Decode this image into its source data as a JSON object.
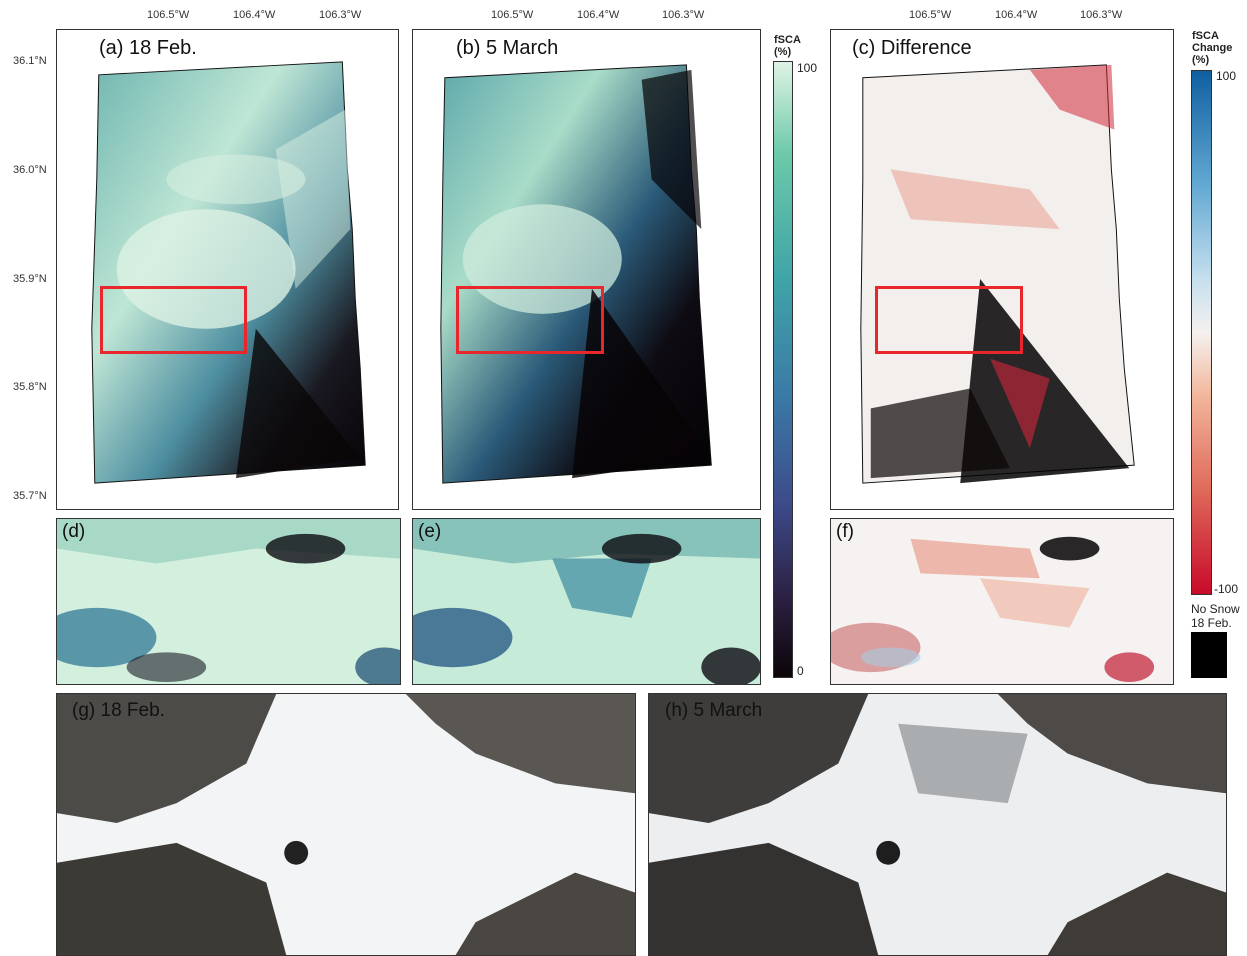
{
  "panels": {
    "a": "(a) 18 Feb.",
    "b": "(b) 5 March",
    "c": "(c) Difference",
    "d": "(d)",
    "e": "(e)",
    "f": "(f)",
    "g": "(g) 18 Feb.",
    "h": "(h) 5 March"
  },
  "axes": {
    "lon_ticks": [
      "106.5°W",
      "106.4°W",
      "106.3°W"
    ],
    "lat_ticks": [
      "36.1°N",
      "36.0°N",
      "35.9°N",
      "35.8°N",
      "35.7°N"
    ]
  },
  "legend_fsca": {
    "title_line1": "fSCA",
    "title_line2": "(%)",
    "max": "100",
    "min": "0",
    "colors": [
      "#0b0508",
      "#2a1e3e",
      "#3d4a8a",
      "#3a78a6",
      "#3fa5a8",
      "#6cc9a9",
      "#dff3e5"
    ]
  },
  "legend_change": {
    "title_line1": "fSCA",
    "title_line2": "Change",
    "title_line3": "(%)",
    "max": "100",
    "min": "-100",
    "colors": [
      "#0f5fa0",
      "#63a9d3",
      "#c7e0ee",
      "#f5f1ef",
      "#f2b79c",
      "#df6a5a",
      "#c80a2a"
    ]
  },
  "legend_nosnow": {
    "line1": "No Snow",
    "line2": "18 Feb.",
    "color": "#000000"
  },
  "highlight_color": "#e8262b"
}
